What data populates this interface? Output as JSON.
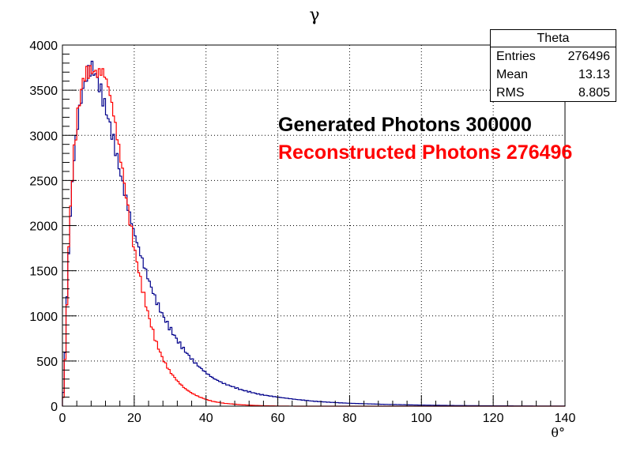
{
  "chart_data": {
    "type": "histogram",
    "title": "γ",
    "xlabel": "θ°",
    "ylabel": "",
    "xlim": [
      0,
      140
    ],
    "ylim": [
      0,
      4000
    ],
    "x_ticks": [
      "0",
      "20",
      "40",
      "60",
      "80",
      "100",
      "120",
      "140"
    ],
    "y_ticks": [
      "0",
      "500",
      "1000",
      "1500",
      "2000",
      "2500",
      "3000",
      "3500",
      "4000"
    ],
    "grid": true,
    "bin_width": 0.5,
    "series": [
      {
        "color": "#00008b",
        "points": [
          [
            0,
            0
          ],
          [
            0.5,
            300
          ],
          [
            1,
            900
          ],
          [
            1.5,
            1500
          ],
          [
            2,
            1900
          ],
          [
            2.5,
            2300
          ],
          [
            3,
            2650
          ],
          [
            4,
            3050
          ],
          [
            5,
            3350
          ],
          [
            6,
            3550
          ],
          [
            7,
            3680
          ],
          [
            8,
            3760
          ],
          [
            9,
            3700
          ],
          [
            10,
            3580
          ],
          [
            11,
            3450
          ],
          [
            12,
            3300
          ],
          [
            13,
            3150
          ],
          [
            14,
            2980
          ],
          [
            15,
            2800
          ],
          [
            16,
            2600
          ],
          [
            17,
            2420
          ],
          [
            18,
            2250
          ],
          [
            19,
            2080
          ],
          [
            20,
            1920
          ],
          [
            22,
            1650
          ],
          [
            24,
            1400
          ],
          [
            26,
            1180
          ],
          [
            28,
            1000
          ],
          [
            30,
            860
          ],
          [
            32,
            730
          ],
          [
            34,
            620
          ],
          [
            36,
            520
          ],
          [
            38,
            440
          ],
          [
            40,
            370
          ],
          [
            42,
            310
          ],
          [
            45,
            250
          ],
          [
            50,
            180
          ],
          [
            55,
            130
          ],
          [
            60,
            100
          ],
          [
            65,
            75
          ],
          [
            70,
            55
          ],
          [
            75,
            42
          ],
          [
            80,
            32
          ],
          [
            90,
            20
          ],
          [
            100,
            12
          ],
          [
            110,
            7
          ],
          [
            120,
            4
          ],
          [
            130,
            2
          ],
          [
            140,
            1
          ]
        ]
      },
      {
        "color": "#ff0000",
        "points": [
          [
            0,
            0
          ],
          [
            0.5,
            200
          ],
          [
            1,
            800
          ],
          [
            1.5,
            1500
          ],
          [
            2,
            2000
          ],
          [
            2.5,
            2400
          ],
          [
            3,
            2700
          ],
          [
            4,
            3150
          ],
          [
            5,
            3450
          ],
          [
            6,
            3650
          ],
          [
            7,
            3700
          ],
          [
            8,
            3720
          ],
          [
            9,
            3700
          ],
          [
            10,
            3680
          ],
          [
            11,
            3720
          ],
          [
            12,
            3650
          ],
          [
            13,
            3500
          ],
          [
            14,
            3300
          ],
          [
            15,
            3050
          ],
          [
            16,
            2800
          ],
          [
            17,
            2550
          ],
          [
            18,
            2250
          ],
          [
            19,
            2000
          ],
          [
            20,
            1750
          ],
          [
            22,
            1350
          ],
          [
            24,
            1000
          ],
          [
            26,
            720
          ],
          [
            28,
            520
          ],
          [
            30,
            380
          ],
          [
            32,
            280
          ],
          [
            34,
            200
          ],
          [
            36,
            145
          ],
          [
            38,
            105
          ],
          [
            40,
            75
          ],
          [
            42,
            52
          ],
          [
            45,
            32
          ],
          [
            50,
            15
          ],
          [
            55,
            6
          ],
          [
            60,
            2
          ],
          [
            65,
            0
          ],
          [
            140,
            0
          ]
        ]
      }
    ],
    "annotations": [
      {
        "text": "Generated Photons 300000",
        "color": "#000000"
      },
      {
        "text": "Reconstructed Photons 276496",
        "color": "#ff0000"
      }
    ]
  },
  "stats_box": {
    "title": "Theta",
    "rows": [
      {
        "key": "Entries",
        "value": "276496"
      },
      {
        "key": "Mean",
        "value": "13.13"
      },
      {
        "key": "RMS",
        "value": "8.805"
      }
    ]
  }
}
